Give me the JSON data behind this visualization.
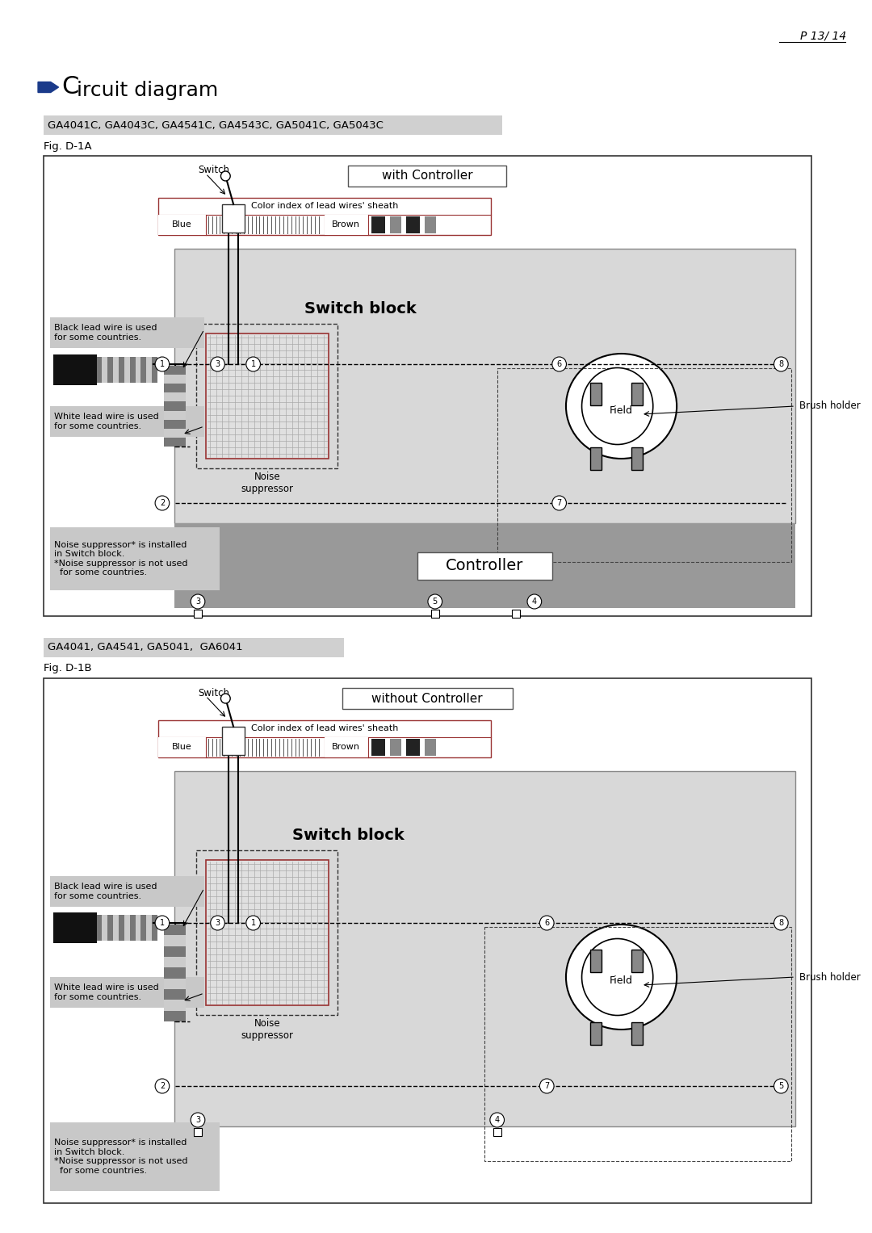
{
  "page_num": "P 13/ 14",
  "title_arrow": "►",
  "title_C": "C",
  "title_rest": "ircuit diagram",
  "subtitle1": "GA4041C, GA4043C, GA4541C, GA4543C, GA5041C, GA5043C",
  "fig1_label": "Fig. D-1A",
  "diagram1_title": "with Controller",
  "subtitle2": "GA4041, GA4541, GA5041,  GA6041",
  "fig2_label": "Fig. D-1B",
  "diagram2_title": "without Controller",
  "color_index_label": "Color index of lead wires' sheath",
  "blue_label": "Blue",
  "brown_label": "Brown",
  "switch_label": "Switch",
  "switch_block_label": "Switch block",
  "noise_suppressor_label": "Noise\nsuppressor",
  "field_label": "Field",
  "brush_holder_label": "Brush holder",
  "controller_label": "Controller",
  "black_wire_note": "Black lead wire is used\nfor some countries.",
  "white_wire_note": "White lead wire is used\nfor some countries.",
  "noise_note": "Noise suppressor* is installed\nin Switch block.\n*Noise suppressor is not used\n  for some countries.",
  "bg_color": "#ffffff",
  "blue_arrow_color": "#1a3a8a",
  "note_bg": "#c8c8c8",
  "border_dark": "#555555",
  "dark_red": "#993333"
}
